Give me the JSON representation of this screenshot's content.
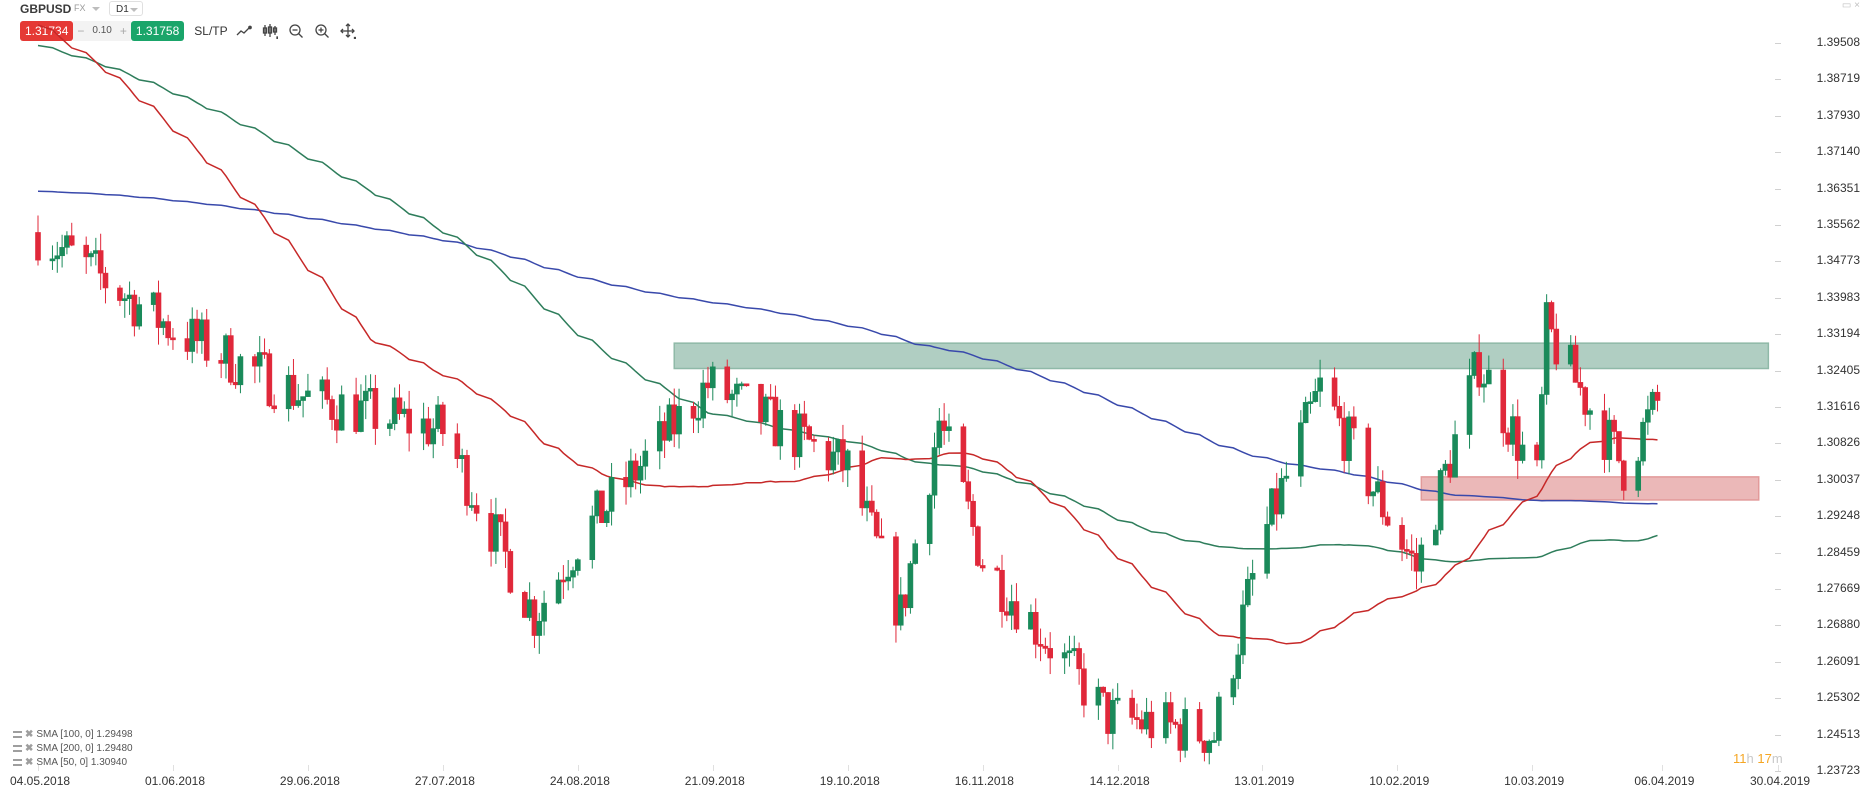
{
  "header": {
    "symbol": "GBPUSD",
    "market": "FX",
    "timeframe": "D1",
    "window_controls": "▭ ×"
  },
  "trade_panel": {
    "sell_price": "1.31734",
    "minus": "−",
    "quantity": "0.10",
    "plus": "+",
    "buy_price": "1.31758",
    "sltp_label": "SL/TP"
  },
  "toolbar": {
    "icons": [
      "line-chart-icon",
      "candlestick-icon",
      "zoom-out-icon",
      "zoom-in-icon",
      "crosshair-move-icon"
    ]
  },
  "legend": [
    {
      "label": "SMA [100, 0] 1.29498"
    },
    {
      "label": "SMA [200, 0] 1.29480"
    },
    {
      "label": "SMA [50, 0] 1.30940"
    }
  ],
  "timer": {
    "hours": "11",
    "h_unit": "h",
    "minutes": "17",
    "m_unit": "m"
  },
  "colors": {
    "bull": "#1a8a5a",
    "bear": "#e0283a",
    "sma50": "#c62828",
    "sma100": "#2e7d5b",
    "sma200": "#3949ab",
    "resistance_zone": "#8fb9a8",
    "support_zone": "#e29a9a"
  },
  "chart_data": {
    "type": "candlestick",
    "title": "GBPUSD D1",
    "xlabel": "",
    "ylabel": "",
    "ylim": [
      1.23723,
      1.39508
    ],
    "y_ticks": [
      "1.39508",
      "1.38719",
      "1.37930",
      "1.37140",
      "1.36351",
      "1.35562",
      "1.34773",
      "1.33983",
      "1.33194",
      "1.32405",
      "1.31616",
      "1.30826",
      "1.30037",
      "1.29248",
      "1.28459",
      "1.27669",
      "1.26880",
      "1.26091",
      "1.25302",
      "1.24513",
      "1.23723"
    ],
    "x_ticks": [
      "04.05.2018",
      "01.06.2018",
      "29.06.2018",
      "27.07.2018",
      "24.08.2018",
      "21.09.2018",
      "19.10.2018",
      "16.11.2018",
      "14.12.2018",
      "13.01.2019",
      "10.02.2019",
      "10.03.2019",
      "06.04.2019",
      "30.04.2019"
    ],
    "grid": false,
    "legend_position": "bottom-left",
    "last_price": {
      "bid": 1.31734,
      "ask": 1.31758
    },
    "indicators": [
      {
        "name": "SMA [100, 0]",
        "value": 1.29498,
        "color": "#2e7d5b"
      },
      {
        "name": "SMA [200, 0]",
        "value": 1.2948,
        "color": "#3949ab"
      },
      {
        "name": "SMA [50, 0]",
        "value": 1.3094,
        "color": "#c62828"
      }
    ],
    "zones": [
      {
        "name": "resistance",
        "from_date": "~13.09.2018",
        "to_date": "~28.04.2019",
        "price_low": 1.3245,
        "price_high": 1.33,
        "color": "#8fb9a8"
      },
      {
        "name": "support",
        "from_date": "~15.02.2019",
        "to_date": "~26.04.2019",
        "price_low": 1.296,
        "price_high": 1.301,
        "color": "#e29a9a"
      }
    ],
    "approx_path": [
      {
        "date": "04.05.2018",
        "close": 1.354
      },
      {
        "date": "01.06.2018",
        "close": 1.333
      },
      {
        "date": "29.06.2018",
        "close": 1.318
      },
      {
        "date": "27.07.2018",
        "close": 1.311
      },
      {
        "date": "15.08.2018",
        "close": 1.271
      },
      {
        "date": "24.08.2018",
        "close": 1.287
      },
      {
        "date": "20.09.2018",
        "close": 1.321
      },
      {
        "date": "19.10.2018",
        "close": 1.303
      },
      {
        "date": "30.10.2018",
        "close": 1.271
      },
      {
        "date": "07.11.2018",
        "close": 1.313
      },
      {
        "date": "16.11.2018",
        "close": 1.283
      },
      {
        "date": "12.12.2018",
        "close": 1.249
      },
      {
        "date": "03.01.2019",
        "close": 1.245
      },
      {
        "date": "13.01.2019",
        "close": 1.287
      },
      {
        "date": "25.01.2019",
        "close": 1.32
      },
      {
        "date": "14.02.2019",
        "close": 1.281
      },
      {
        "date": "27.02.2019",
        "close": 1.326
      },
      {
        "date": "11.03.2019",
        "close": 1.3
      },
      {
        "date": "13.03.2019",
        "close": 1.333
      },
      {
        "date": "29.03.2019",
        "close": 1.303
      },
      {
        "date": "05.04.2019",
        "close": 1.317
      }
    ]
  }
}
